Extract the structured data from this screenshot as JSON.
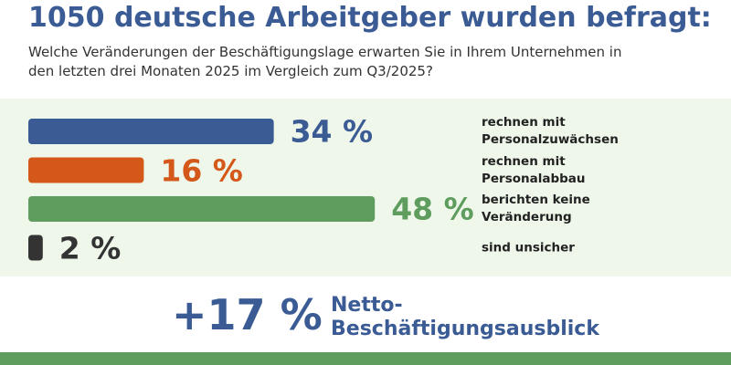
{
  "chart_data": {
    "type": "bar",
    "orientation": "horizontal",
    "title": "1050 deutsche Arbeitgeber wurden befragt:",
    "subtitle": "Welche Veränderungen der Beschäftigungslage erwarten Sie in Ihrem Unternehmen in den letzten drei Monaten 2025 im Vergleich zum Q3/2025?",
    "categories": [
      "rechnen mit Personalzuwächsen",
      "rechnen mit Personalabbau",
      "berichten keine Veränderung",
      "sind unsicher"
    ],
    "values": [
      34,
      16,
      48,
      2
    ],
    "value_labels": [
      "34 %",
      "16 %",
      "48 %",
      "2 %"
    ],
    "colors": [
      "#3a5b94",
      "#d4581a",
      "#5f9d5f",
      "#333333"
    ],
    "net_value": 17,
    "net_value_label": "+17 %",
    "net_label": "Netto-Beschäftigungsausblick"
  }
}
